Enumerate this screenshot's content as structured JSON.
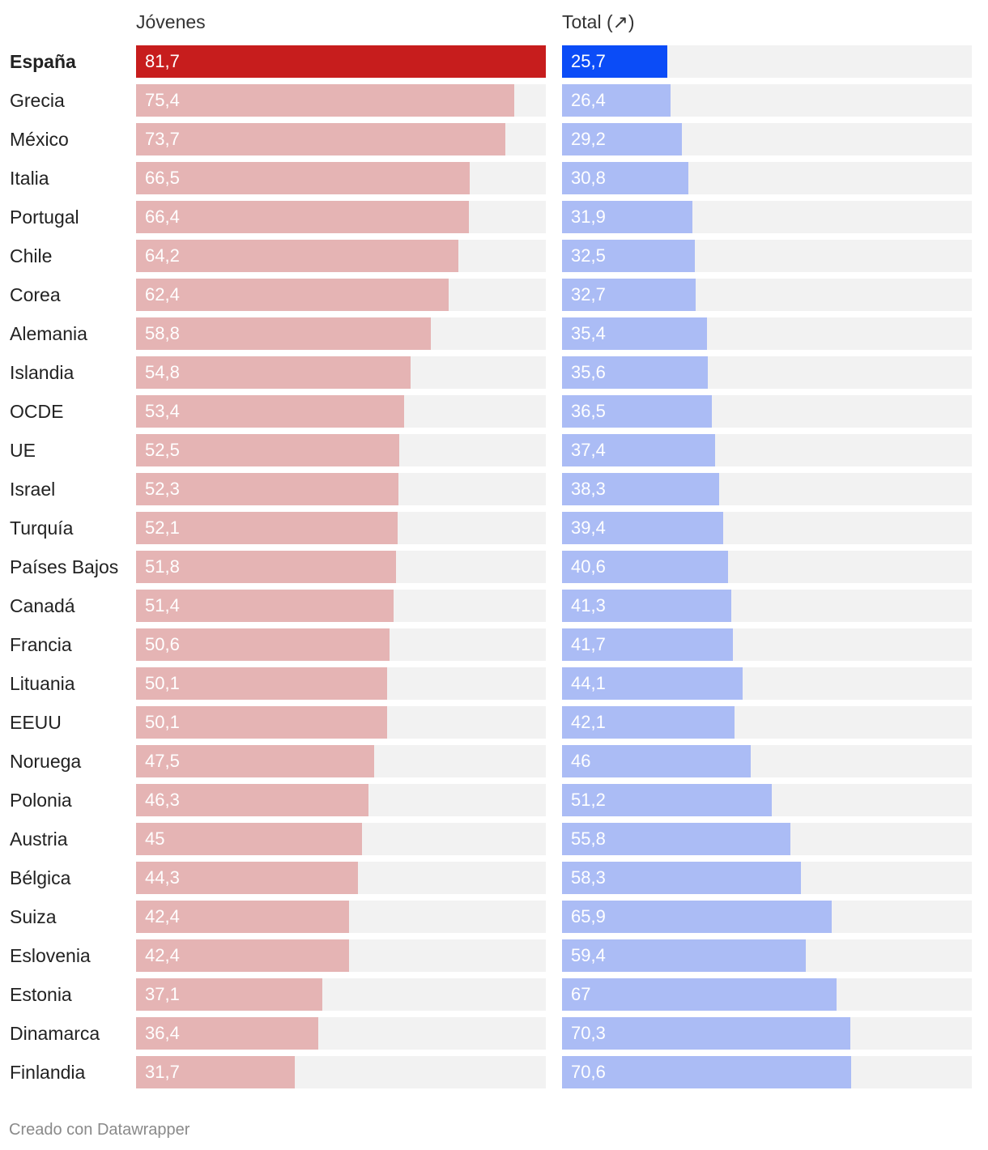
{
  "chart_data": {
    "type": "bar",
    "orientation": "horizontal",
    "columns": [
      {
        "name": "Jóvenes",
        "max": 81.7
      },
      {
        "name": "Total (↗)",
        "max": 100
      }
    ],
    "highlight": "España",
    "colors": {
      "left_highlight": "#c71d1d",
      "left": "#e5b4b4",
      "right_highlight": "#0b4cf7",
      "right": "#abbcf5",
      "track": "#f2f2f2"
    },
    "rows": [
      {
        "country": "España",
        "jovenes": 81.7,
        "jovenes_label": "81,7",
        "total": 25.7,
        "total_label": "25,7"
      },
      {
        "country": "Grecia",
        "jovenes": 75.4,
        "jovenes_label": "75,4",
        "total": 26.4,
        "total_label": "26,4"
      },
      {
        "country": "México",
        "jovenes": 73.7,
        "jovenes_label": "73,7",
        "total": 29.2,
        "total_label": "29,2"
      },
      {
        "country": "Italia",
        "jovenes": 66.5,
        "jovenes_label": "66,5",
        "total": 30.8,
        "total_label": "30,8"
      },
      {
        "country": "Portugal",
        "jovenes": 66.4,
        "jovenes_label": "66,4",
        "total": 31.9,
        "total_label": "31,9"
      },
      {
        "country": "Chile",
        "jovenes": 64.2,
        "jovenes_label": "64,2",
        "total": 32.5,
        "total_label": "32,5"
      },
      {
        "country": "Corea",
        "jovenes": 62.4,
        "jovenes_label": "62,4",
        "total": 32.7,
        "total_label": "32,7"
      },
      {
        "country": "Alemania",
        "jovenes": 58.8,
        "jovenes_label": "58,8",
        "total": 35.4,
        "total_label": "35,4"
      },
      {
        "country": "Islandia",
        "jovenes": 54.8,
        "jovenes_label": "54,8",
        "total": 35.6,
        "total_label": "35,6"
      },
      {
        "country": "OCDE",
        "jovenes": 53.4,
        "jovenes_label": "53,4",
        "total": 36.5,
        "total_label": "36,5"
      },
      {
        "country": "UE",
        "jovenes": 52.5,
        "jovenes_label": "52,5",
        "total": 37.4,
        "total_label": "37,4"
      },
      {
        "country": "Israel",
        "jovenes": 52.3,
        "jovenes_label": "52,3",
        "total": 38.3,
        "total_label": "38,3"
      },
      {
        "country": "Turquía",
        "jovenes": 52.1,
        "jovenes_label": "52,1",
        "total": 39.4,
        "total_label": "39,4"
      },
      {
        "country": "Países Bajos",
        "jovenes": 51.8,
        "jovenes_label": "51,8",
        "total": 40.6,
        "total_label": "40,6"
      },
      {
        "country": "Canadá",
        "jovenes": 51.4,
        "jovenes_label": "51,4",
        "total": 41.3,
        "total_label": "41,3"
      },
      {
        "country": "Francia",
        "jovenes": 50.6,
        "jovenes_label": "50,6",
        "total": 41.7,
        "total_label": "41,7"
      },
      {
        "country": "Lituania",
        "jovenes": 50.1,
        "jovenes_label": "50,1",
        "total": 44.1,
        "total_label": "44,1"
      },
      {
        "country": "EEUU",
        "jovenes": 50.1,
        "jovenes_label": "50,1",
        "total": 42.1,
        "total_label": "42,1"
      },
      {
        "country": "Noruega",
        "jovenes": 47.5,
        "jovenes_label": "47,5",
        "total": 46,
        "total_label": "46"
      },
      {
        "country": "Polonia",
        "jovenes": 46.3,
        "jovenes_label": "46,3",
        "total": 51.2,
        "total_label": "51,2"
      },
      {
        "country": "Austria",
        "jovenes": 45,
        "jovenes_label": "45",
        "total": 55.8,
        "total_label": "55,8"
      },
      {
        "country": "Bélgica",
        "jovenes": 44.3,
        "jovenes_label": "44,3",
        "total": 58.3,
        "total_label": "58,3"
      },
      {
        "country": "Suiza",
        "jovenes": 42.4,
        "jovenes_label": "42,4",
        "total": 65.9,
        "total_label": "65,9"
      },
      {
        "country": "Eslovenia",
        "jovenes": 42.4,
        "jovenes_label": "42,4",
        "total": 59.4,
        "total_label": "59,4"
      },
      {
        "country": "Estonia",
        "jovenes": 37.1,
        "jovenes_label": "37,1",
        "total": 67,
        "total_label": "67"
      },
      {
        "country": "Dinamarca",
        "jovenes": 36.4,
        "jovenes_label": "36,4",
        "total": 70.3,
        "total_label": "70,3"
      },
      {
        "country": "Finlandia",
        "jovenes": 31.7,
        "jovenes_label": "31,7",
        "total": 70.6,
        "total_label": "70,6"
      }
    ]
  },
  "footer": {
    "credit": "Creado con Datawrapper"
  }
}
